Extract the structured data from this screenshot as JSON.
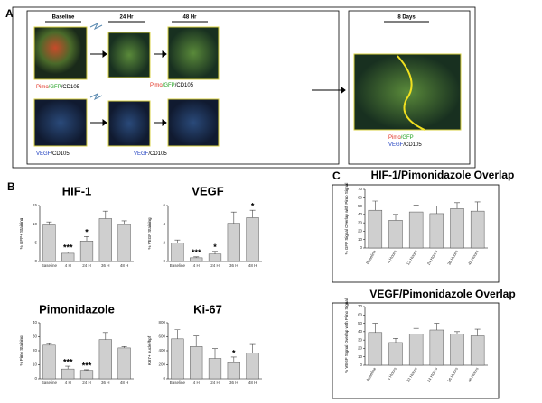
{
  "panel_a": {
    "label": "A",
    "columns": [
      "Baseline",
      "24 Hr",
      "48 Hr"
    ],
    "final": "8 Days",
    "row1_label": [
      "Pimo",
      "/GFP",
      "/CD105"
    ],
    "row2_label": [
      "VEGF",
      "/CD105"
    ],
    "final_label_1": [
      "Pimo",
      "/GFP"
    ],
    "final_label_2": [
      "VEGF",
      "/CD105"
    ]
  },
  "panel_b_label": "B",
  "panel_c_label": "C",
  "chart_data": [
    {
      "type": "bar",
      "title": "HIF-1",
      "ylabel": "% GFP+ Staining",
      "categories": [
        "Baseline",
        "4 H",
        "24 H",
        "36 H",
        "48 H"
      ],
      "values": [
        9.8,
        2.2,
        5.5,
        11.5,
        9.9
      ],
      "errors": [
        0.8,
        0.4,
        1.2,
        2,
        1
      ],
      "ylim": [
        0,
        15
      ],
      "yticks": [
        0,
        5,
        10,
        15
      ],
      "color": "#cfcfcf",
      "annotations": [
        {
          "category": "4 H",
          "text": "***"
        },
        {
          "category": "24 H",
          "text": "*"
        }
      ]
    },
    {
      "type": "bar",
      "title": "VEGF",
      "ylabel": "% VEGF Staining",
      "categories": [
        "Baseline",
        "4 H",
        "24 H",
        "36 H",
        "48 H"
      ],
      "values": [
        2.0,
        0.4,
        0.8,
        4.1,
        4.7
      ],
      "errors": [
        0.3,
        0.1,
        0.3,
        1.2,
        0.8
      ],
      "ylim": [
        0,
        6
      ],
      "yticks": [
        0,
        2,
        4,
        6
      ],
      "color": "#cfcfcf",
      "annotations": [
        {
          "category": "4 H",
          "text": "***"
        },
        {
          "category": "24 H",
          "text": "*"
        },
        {
          "category": "48 H",
          "text": "*"
        }
      ]
    },
    {
      "type": "bar",
      "title": "Pimonidazole",
      "ylabel": "% Pimo Staining",
      "categories": [
        "Baseline",
        "4 H",
        "24 H",
        "36 H",
        "48 H"
      ],
      "values": [
        24,
        7,
        6,
        28,
        22
      ],
      "errors": [
        1,
        2,
        0.5,
        5,
        1
      ],
      "ylim": [
        0,
        40
      ],
      "yticks": [
        0,
        10,
        20,
        30,
        40
      ],
      "color": "#cfcfcf",
      "annotations": [
        {
          "category": "4 H",
          "text": "***"
        },
        {
          "category": "24 H",
          "text": "***"
        }
      ]
    },
    {
      "type": "bar",
      "title": "Ki-67",
      "ylabel": "Ki67+ nuclei/hpf",
      "categories": [
        "Baseline",
        "4 H",
        "24 H",
        "36 H",
        "48 H"
      ],
      "values": [
        570,
        460,
        290,
        230,
        370
      ],
      "errors": [
        130,
        150,
        140,
        80,
        120
      ],
      "ylim": [
        0,
        800
      ],
      "yticks": [
        0,
        200,
        400,
        600,
        800
      ],
      "color": "#cfcfcf",
      "annotations": [
        {
          "category": "36 H",
          "text": "*"
        }
      ]
    },
    {
      "type": "bar",
      "title": "HIF-1/Pimonidazole Overlap",
      "ylabel": "% GFP Signal Overlap with Pimo Signal",
      "categories": [
        "Baseline",
        "4 Hours",
        "12 Hours",
        "24 Hours",
        "36 Hours",
        "48 Hours"
      ],
      "values": [
        45,
        33,
        43,
        41,
        47,
        44
      ],
      "errors": [
        11,
        7,
        8,
        9,
        7,
        11
      ],
      "ylim": [
        0,
        70
      ],
      "yticks": [
        0,
        10,
        20,
        30,
        40,
        50,
        60,
        70
      ],
      "color": "#cfcfcf"
    },
    {
      "type": "bar",
      "title": "VEGF/Pimonidazole Overlap",
      "ylabel": "% VEGF Signal Overlap with Pimo Signal",
      "categories": [
        "Baseline",
        "4 Hours",
        "12 Hours",
        "24 Hours",
        "36 Hours",
        "48 Hours"
      ],
      "values": [
        39,
        27,
        37,
        42,
        37,
        35
      ],
      "errors": [
        11,
        5,
        7,
        8,
        3,
        8
      ],
      "ylim": [
        0,
        70
      ],
      "yticks": [
        0,
        10,
        20,
        30,
        40,
        50,
        60,
        70
      ],
      "color": "#cfcfcf"
    }
  ]
}
